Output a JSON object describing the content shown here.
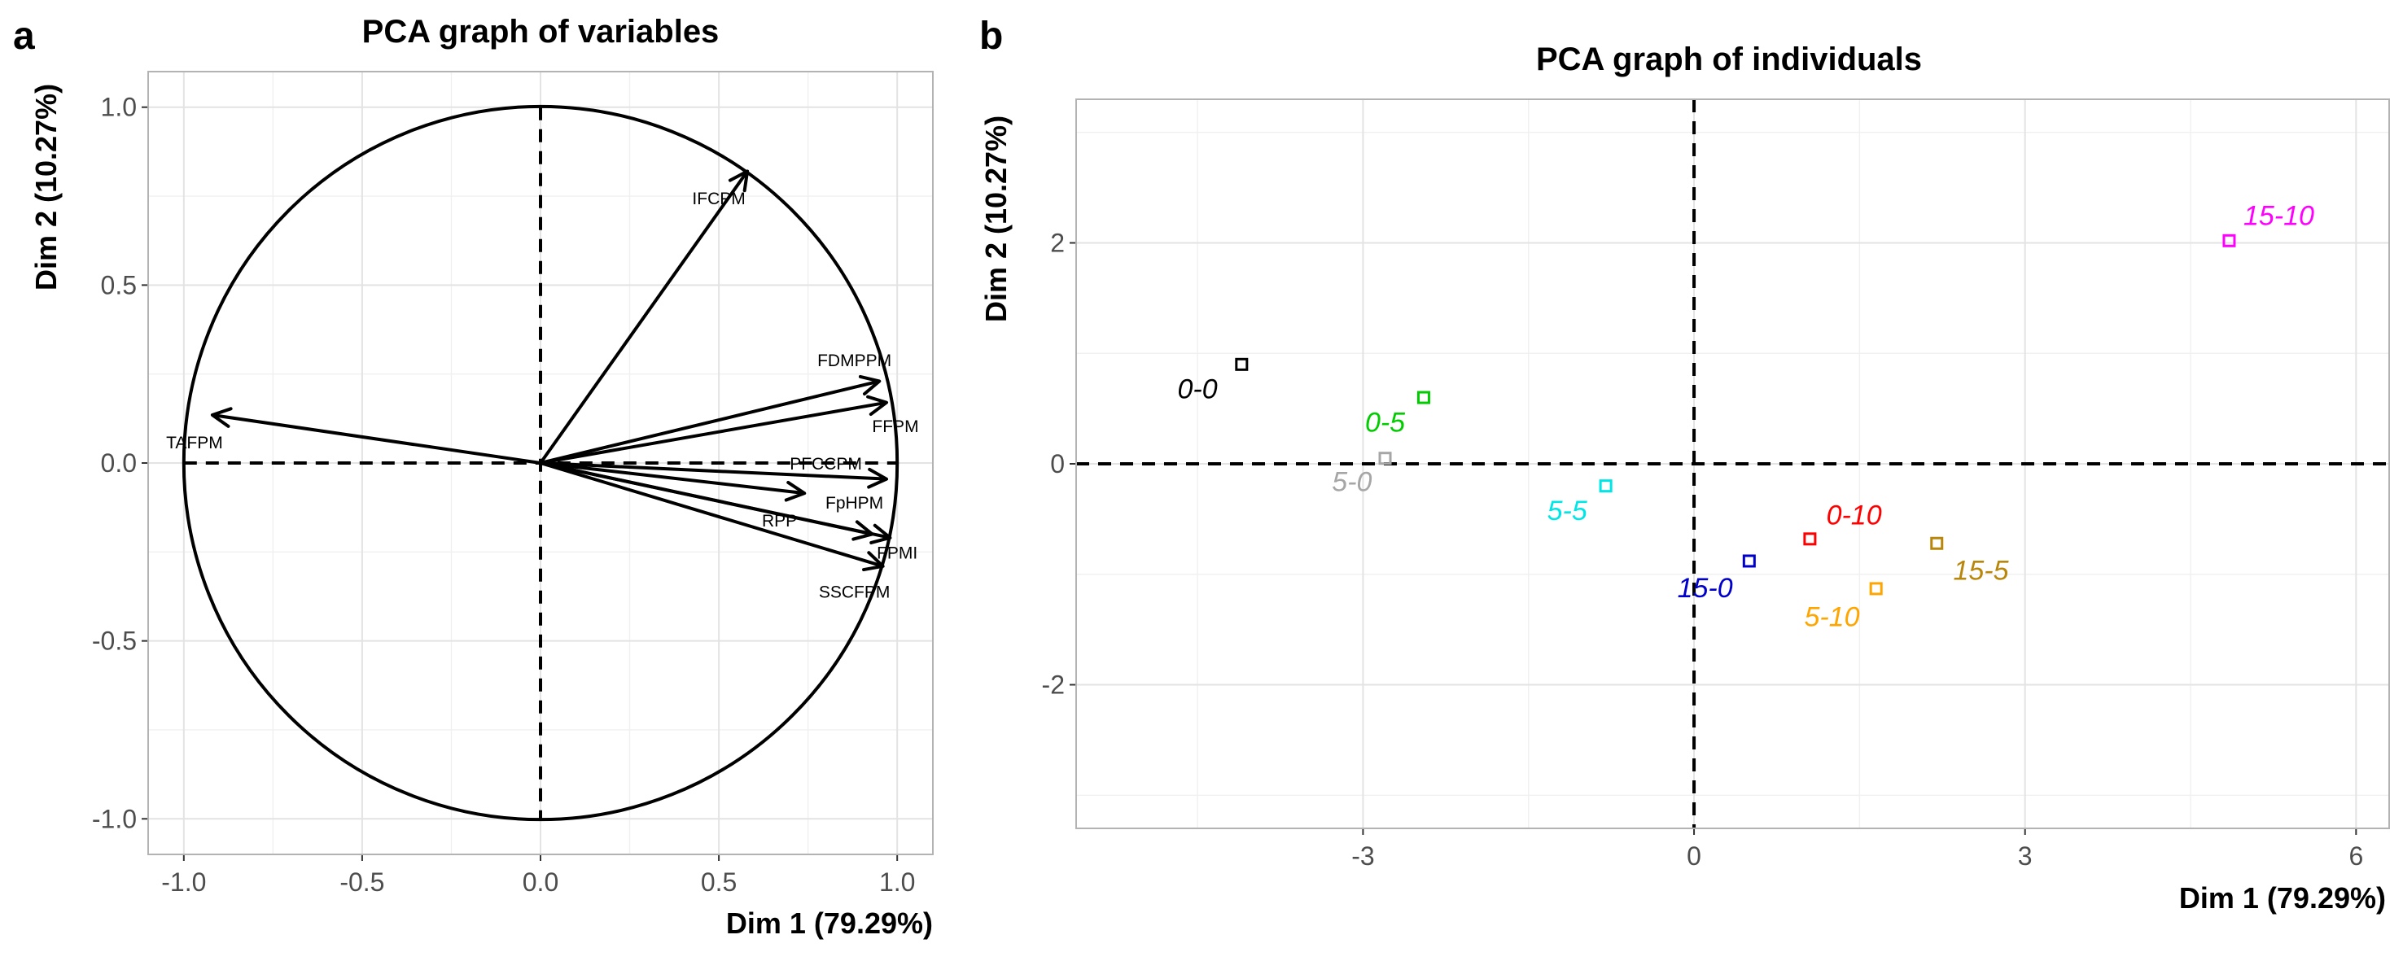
{
  "panels": {
    "a": {
      "letter": "a"
    },
    "b": {
      "letter": "b"
    }
  },
  "chart_data": [
    {
      "type": "scatter",
      "subtype": "pca-variables-correlation-circle",
      "title": "PCA graph of variables",
      "xlabel": "Dim 1 (79.29%)",
      "ylabel": "Dim 2 (10.27%)",
      "xlim": [
        -1.1,
        1.1
      ],
      "ylim": [
        -1.1,
        1.1
      ],
      "xticks": [
        -1.0,
        -0.5,
        0.0,
        0.5,
        1.0
      ],
      "yticks": [
        -1.0,
        -0.5,
        0.0,
        0.5,
        1.0
      ],
      "xtick_labels": [
        "-1.0",
        "-0.5",
        "0.0",
        "0.5",
        "1.0"
      ],
      "ytick_labels": [
        "-1.0",
        "-0.5",
        "0.0",
        "0.5",
        "1.0"
      ],
      "grid": true,
      "unit_circle": true,
      "color": "#000000",
      "variables": [
        {
          "name": "IFCPM",
          "x": 0.58,
          "y": 0.82,
          "label_x": 0.5,
          "label_y": 0.745
        },
        {
          "name": "FDMPPM",
          "x": 0.95,
          "y": 0.23,
          "label_x": 0.88,
          "label_y": 0.29
        },
        {
          "name": "FFPM",
          "x": 0.97,
          "y": 0.17,
          "label_x": 0.995,
          "label_y": 0.105
        },
        {
          "name": "TAFPM",
          "x": -0.92,
          "y": 0.135,
          "label_x": -0.97,
          "label_y": 0.06
        },
        {
          "name": "PFCCPM",
          "x": 0.97,
          "y": -0.045,
          "label_x": 0.8,
          "label_y": 0.0
        },
        {
          "name": "FpHPM",
          "x": 0.93,
          "y": -0.2,
          "label_x": 0.88,
          "label_y": -0.11
        },
        {
          "name": "RPP",
          "x": 0.74,
          "y": -0.085,
          "label_x": 0.67,
          "label_y": -0.16
        },
        {
          "name": "FPMI",
          "x": 0.98,
          "y": -0.21,
          "label_x": 1.0,
          "label_y": -0.25
        },
        {
          "name": "SSCFPM",
          "x": 0.96,
          "y": -0.29,
          "label_x": 0.88,
          "label_y": -0.36
        }
      ]
    },
    {
      "type": "scatter",
      "subtype": "pca-individuals",
      "title": "PCA graph of individuals",
      "xlabel": "Dim 1 (79.29%)",
      "ylabel": "Dim 2 (10.27%)",
      "xlim": [
        -5.6,
        6.3
      ],
      "ylim": [
        -3.3,
        3.3
      ],
      "xticks": [
        -3,
        0,
        3,
        6
      ],
      "yticks": [
        -2,
        0,
        2
      ],
      "xtick_labels": [
        "-3",
        "0",
        "3",
        "6"
      ],
      "ytick_labels": [
        "-2",
        "0",
        "2"
      ],
      "grid": true,
      "points": [
        {
          "name": "0-0",
          "x": -4.1,
          "y": 0.9,
          "color": "#000000",
          "label_x": -4.5,
          "label_y": 0.68
        },
        {
          "name": "0-5",
          "x": -2.45,
          "y": 0.6,
          "color": "#00cc00",
          "label_x": -2.8,
          "label_y": 0.38
        },
        {
          "name": "5-0",
          "x": -2.8,
          "y": 0.05,
          "color": "#a6a6a6",
          "label_x": -3.1,
          "label_y": -0.16
        },
        {
          "name": "5-5",
          "x": -0.8,
          "y": -0.2,
          "color": "#00e5e5",
          "label_x": -1.15,
          "label_y": -0.42
        },
        {
          "name": "15-0",
          "x": 0.5,
          "y": -0.88,
          "color": "#0000cc",
          "label_x": 0.1,
          "label_y": -1.12
        },
        {
          "name": "0-10",
          "x": 1.05,
          "y": -0.68,
          "color": "#ff0000",
          "label_x": 1.45,
          "label_y": -0.46
        },
        {
          "name": "5-10",
          "x": 1.65,
          "y": -1.13,
          "color": "#ffa500",
          "label_x": 1.25,
          "label_y": -1.38
        },
        {
          "name": "15-5",
          "x": 2.2,
          "y": -0.72,
          "color": "#b8860b",
          "label_x": 2.6,
          "label_y": -0.96
        },
        {
          "name": "15-10",
          "x": 4.85,
          "y": 2.02,
          "color": "#ff00ff",
          "label_x": 5.3,
          "label_y": 2.25
        }
      ]
    }
  ]
}
